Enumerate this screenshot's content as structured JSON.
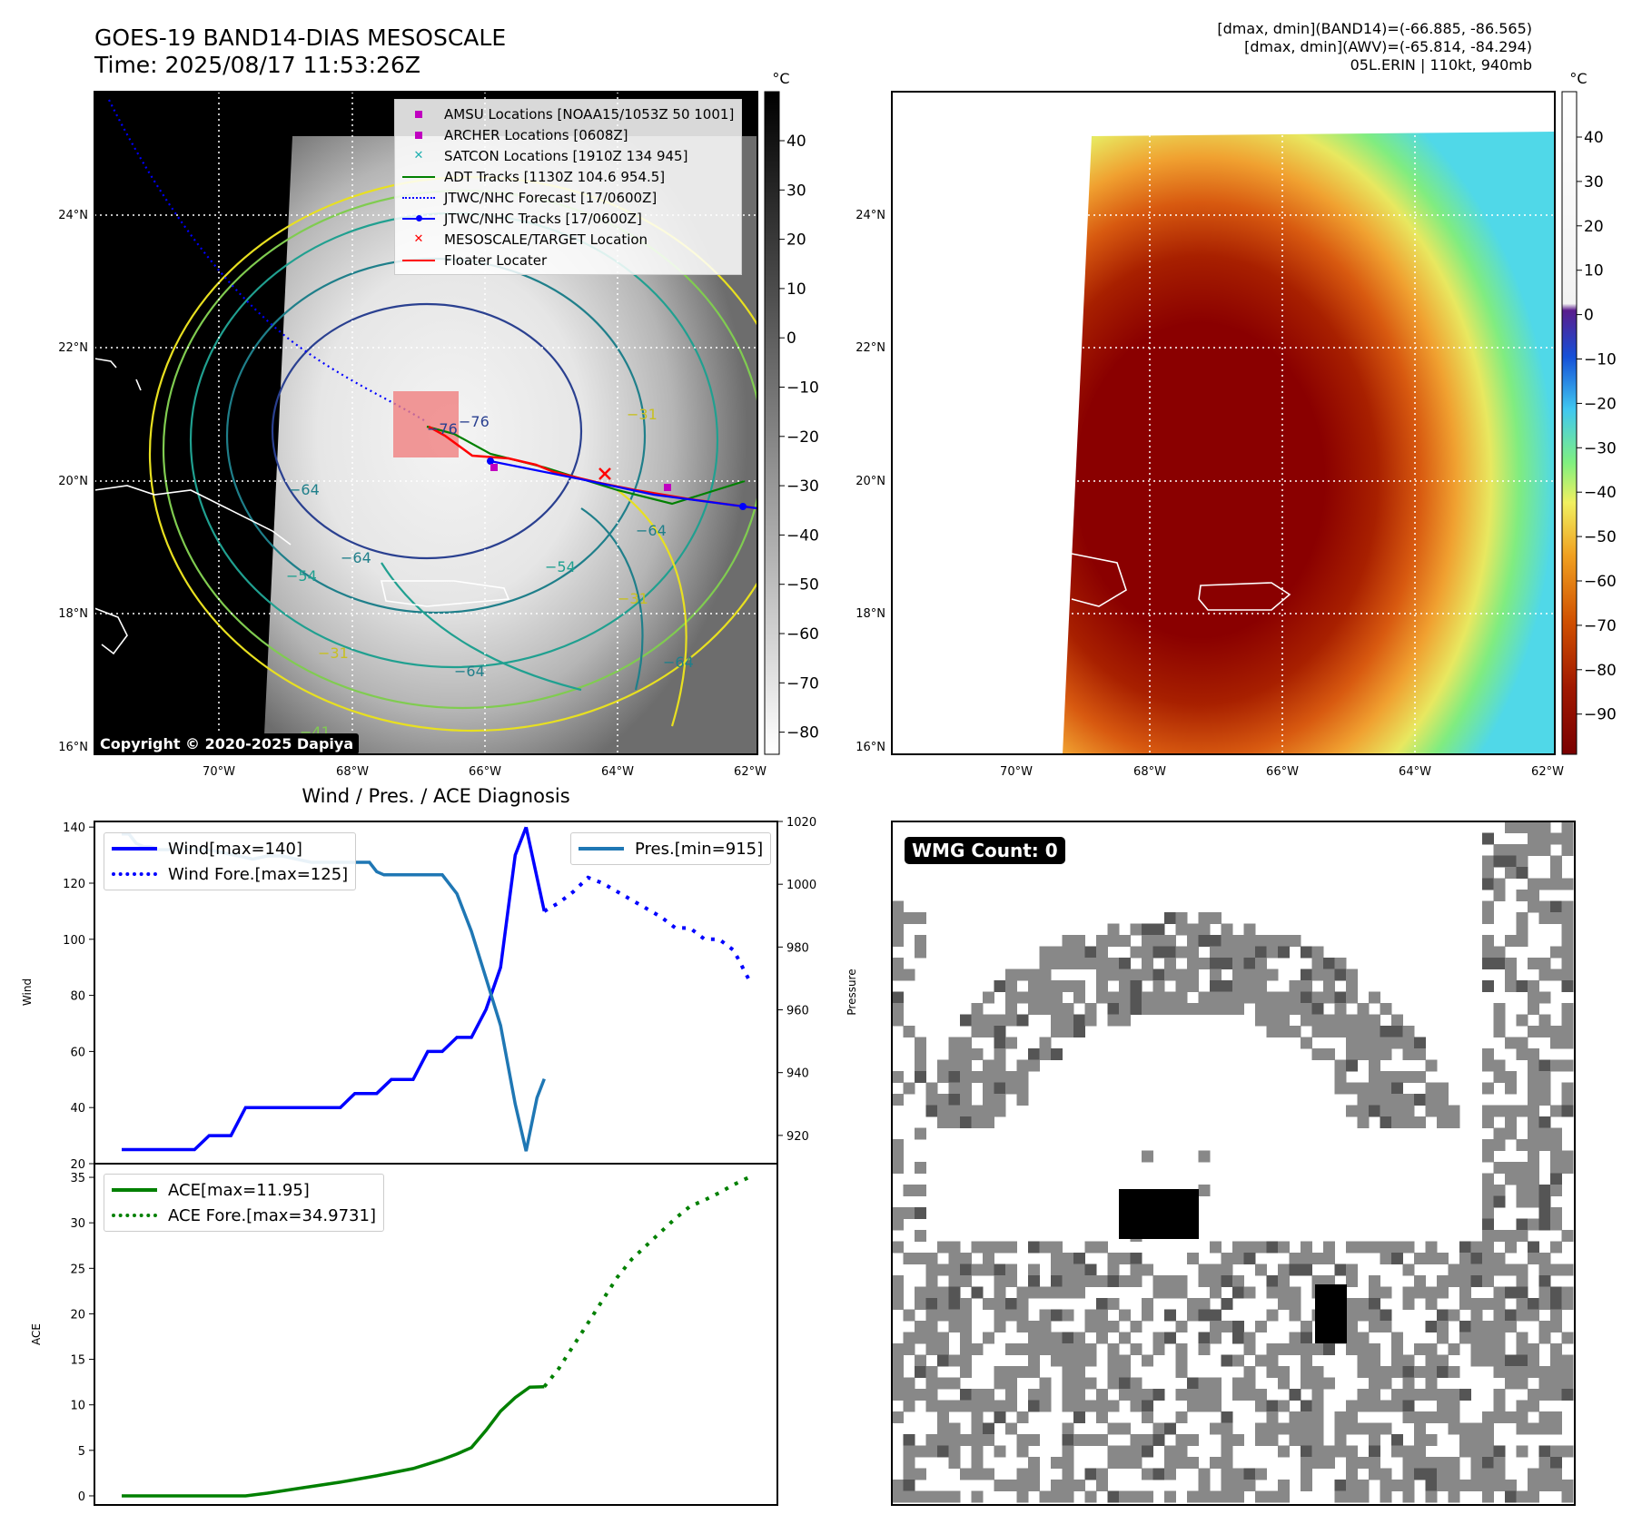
{
  "header": {
    "title_line1": "GOES-19 BAND14-DIAS MESOSCALE",
    "title_line2": "Time: 2025/08/17 11:53:26Z",
    "info_line1": "[dmax, dmin](BAND14)=(-66.885, -86.565)",
    "info_line2": "[dmax, dmin](AWV)=(-65.814, -84.294)",
    "info_line3": "05L.ERIN | 110kt, 940mb"
  },
  "map_axes": {
    "lat_labels": [
      "24°N",
      "22°N",
      "20°N",
      "18°N",
      "16°N"
    ],
    "lon_labels": [
      "70°W",
      "68°W",
      "66°W",
      "64°W",
      "62°W"
    ]
  },
  "ir_colorbar": {
    "unit": "°C",
    "ticks": [
      "40",
      "30",
      "20",
      "10",
      "0",
      "−10",
      "−20",
      "−30",
      "−40",
      "−50",
      "−60",
      "−70",
      "−80"
    ]
  },
  "awv_colorbar": {
    "unit": "°C",
    "ticks": [
      "40",
      "30",
      "20",
      "10",
      "0",
      "−10",
      "−20",
      "−30",
      "−40",
      "−50",
      "−60",
      "−70",
      "−80",
      "−90"
    ]
  },
  "map_legend": {
    "items": [
      {
        "label": "AMSU Locations [NOAA15/1053Z 50 1001]",
        "color": "#c000c0",
        "kind": "square"
      },
      {
        "label": "ARCHER Locations [0608Z]",
        "color": "#c000c0",
        "kind": "square"
      },
      {
        "label": "SATCON Locations [1910Z 134 945]",
        "color": "#20b0b0",
        "kind": "x"
      },
      {
        "label": "ADT Tracks [1130Z 104.6 954.5]",
        "color": "#008000",
        "kind": "line"
      },
      {
        "label": "JTWC/NHC Forecast [17/0600Z]",
        "color": "#0000ff",
        "kind": "dotted"
      },
      {
        "label": "JTWC/NHC Tracks [17/0600Z]",
        "color": "#0000ff",
        "kind": "line-dot"
      },
      {
        "label": "MESOSCALE/TARGET Location",
        "color": "#ff0000",
        "kind": "x"
      },
      {
        "label": "Floater Locater",
        "color": "#ff0000",
        "kind": "line"
      }
    ]
  },
  "contour_labels": [
    "−76",
    "−76",
    "−64",
    "−64",
    "−54",
    "−31",
    "−31",
    "−64",
    "−54",
    "−31",
    "−64",
    "−64",
    "−41"
  ],
  "copyright": "Copyright © 2020-2025 Dapiya",
  "wmg": {
    "label": "WMG Count: 0"
  },
  "diag": {
    "title": "Wind / Pres. / ACE Diagnosis",
    "wind_ylabel": "Wind",
    "pres_ylabel": "Pressure",
    "ace_ylabel": "ACE",
    "legend_wind": "Wind[max=140]",
    "legend_wind_fore": "Wind Fore.[max=125]",
    "legend_pres": "Pres.[min=915]",
    "legend_ace": "ACE[max=11.95]",
    "legend_ace_fore": "ACE Fore.[max=34.9731]"
  },
  "chart_data": [
    {
      "type": "line",
      "title": "Wind / Pres. / ACE Diagnosis",
      "ylabel": "Wind",
      "ylim": [
        20,
        142
      ],
      "y_ticks": [
        20,
        40,
        60,
        80,
        100,
        120,
        140
      ],
      "series": [
        {
          "name": "Wind[max=140]",
          "color": "#0000ff",
          "style": "solid",
          "x": [
            0,
            5,
            10,
            12,
            15,
            17,
            20,
            25,
            30,
            32,
            35,
            37,
            40,
            42,
            44,
            46,
            48,
            50,
            52,
            54,
            55.5
          ],
          "values": [
            25,
            25,
            25,
            30,
            30,
            40,
            40,
            40,
            40,
            45,
            45,
            50,
            50,
            60,
            60,
            65,
            65,
            75,
            90,
            130,
            140
          ]
        },
        {
          "name": "Wind[max=140]",
          "color": "#0000ff",
          "style": "solid",
          "x": [
            55.5,
            58
          ],
          "values": [
            140,
            110
          ]
        },
        {
          "name": "Wind Fore.[max=125]",
          "color": "#0000ff",
          "style": "dotted",
          "x": [
            58,
            60,
            62,
            64,
            66,
            68,
            70,
            72,
            74,
            76,
            78,
            80,
            82,
            84,
            86
          ],
          "values": [
            110,
            113,
            117,
            122,
            120,
            117,
            114,
            111,
            108,
            104,
            104,
            100,
            100,
            96,
            86
          ]
        }
      ]
    },
    {
      "type": "line",
      "ylabel": "Pressure",
      "ylim": [
        911,
        1020
      ],
      "y_ticks": [
        920,
        940,
        960,
        980,
        1000,
        1020
      ],
      "series": [
        {
          "name": "Pres.[min=915]",
          "color": "#1f77b4",
          "style": "solid",
          "x": [
            0,
            1,
            2,
            3,
            4,
            5,
            6,
            8,
            10,
            12,
            14,
            16,
            18,
            20,
            22,
            24,
            26,
            28,
            30,
            32,
            34,
            35,
            36,
            37,
            38,
            40,
            42,
            44,
            46,
            48,
            50,
            52,
            54,
            55.5,
            57,
            58
          ],
          "values": [
            1016,
            1016,
            1013,
            1012,
            1012,
            1011,
            1011,
            1011,
            1011,
            1011,
            1010,
            1009,
            1008,
            1009,
            1009,
            1008,
            1007,
            1007,
            1007,
            1007,
            1007,
            1004,
            1003,
            1003,
            1003,
            1003,
            1003,
            1003,
            997,
            985,
            970,
            955,
            930,
            915,
            932,
            938
          ]
        }
      ]
    },
    {
      "type": "line",
      "ylabel": "ACE",
      "ylim": [
        -1,
        36.5
      ],
      "y_ticks": [
        0,
        5,
        10,
        15,
        20,
        25,
        30,
        35
      ],
      "series": [
        {
          "name": "ACE[max=11.95]",
          "color": "#008000",
          "style": "solid",
          "x": [
            0,
            5,
            10,
            15,
            17,
            20,
            25,
            30,
            35,
            40,
            42,
            44,
            46,
            48,
            50,
            52,
            54,
            56,
            58
          ],
          "values": [
            0,
            0,
            0,
            0,
            0,
            0.3,
            0.9,
            1.5,
            2.2,
            3.0,
            3.5,
            4.0,
            4.6,
            5.3,
            7.2,
            9.3,
            10.8,
            11.95,
            12.0
          ]
        },
        {
          "name": "ACE Fore.[max=34.9731]",
          "color": "#008000",
          "style": "dotted",
          "x": [
            58,
            60,
            62,
            64,
            66,
            68,
            70,
            72,
            74,
            76,
            78,
            80,
            82,
            84,
            86
          ],
          "values": [
            12,
            14,
            16.5,
            19,
            21.5,
            24,
            26,
            27.5,
            29,
            30.5,
            31.8,
            32.5,
            33.3,
            34.2,
            34.97
          ]
        }
      ]
    }
  ]
}
